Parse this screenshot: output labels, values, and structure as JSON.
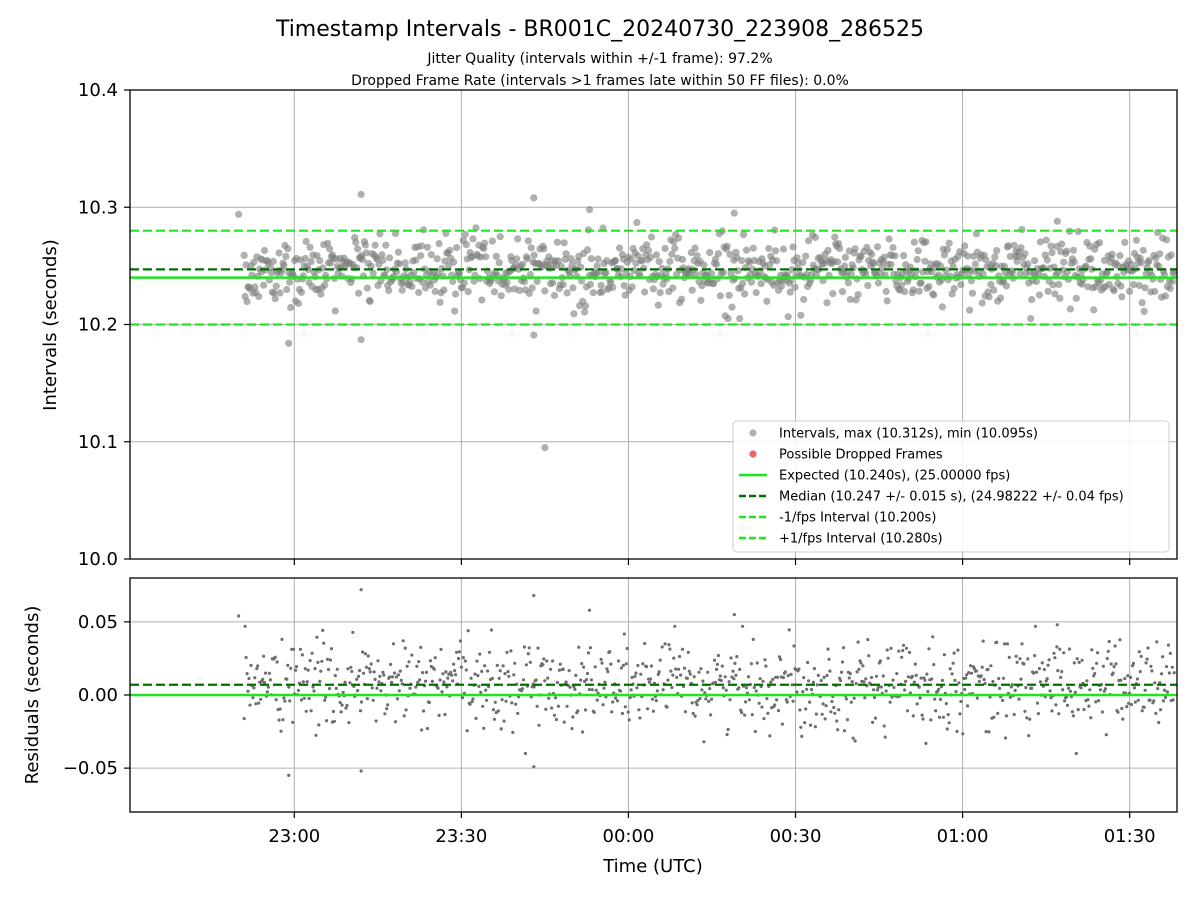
{
  "title": "Timestamp Intervals - BR001C_20240730_223908_286525",
  "subtitle_1": "Jitter Quality (intervals within +/-1 frame): 97.2%",
  "subtitle_2": "Dropped Frame Rate (intervals >1 frames late within 50 FF files): 0.0%",
  "colors": {
    "points": "#808080",
    "dropped": "#f05050",
    "expected": "#1ee61e",
    "median": "#007000",
    "fps_interval": "#1ee61e",
    "grid": "#b0b0b0"
  },
  "chart_data": [
    {
      "type": "scatter",
      "ylabel": "Intervals (seconds)",
      "ylim": [
        10.0,
        10.4
      ],
      "xlim_minutes": [
        -89.5,
        98.5
      ],
      "y_ticks": [
        "10.0",
        "10.1",
        "10.2",
        "10.3",
        "10.4"
      ],
      "grid": true,
      "legend_position": "lower-right",
      "series": [
        {
          "name": "Intervals, max (10.312s), min (10.095s)",
          "kind": "points",
          "max": 10.312,
          "min": 10.095,
          "center": 10.247,
          "spread": 0.015
        },
        {
          "name": "Possible Dropped Frames",
          "kind": "points",
          "values": []
        },
        {
          "name": "Expected (10.240s), (25.00000 fps)",
          "kind": "hline",
          "y": 10.24
        },
        {
          "name": "Median (10.247 +/- 0.015 s), (24.98222 +/- 0.04 fps)",
          "kind": "hline",
          "y": 10.247
        },
        {
          "name": "-1/fps Interval (10.200s)",
          "kind": "hline",
          "y": 10.2
        },
        {
          "name": "+1/fps Interval (10.280s)",
          "kind": "hline",
          "y": 10.28
        }
      ],
      "outliers": [
        {
          "time": "22:59",
          "y": 10.184
        },
        {
          "time": "23:12",
          "y": 10.187
        },
        {
          "time": "23:12",
          "y": 10.311
        },
        {
          "time": "23:43",
          "y": 10.191
        },
        {
          "time": "23:43",
          "y": 10.308
        },
        {
          "time": "23:45",
          "y": 10.095
        },
        {
          "time": "22:50",
          "y": 10.294
        },
        {
          "time": "23:53",
          "y": 10.298
        },
        {
          "time": "00:19",
          "y": 10.295
        },
        {
          "time": "01:17",
          "y": 10.288
        }
      ]
    },
    {
      "type": "scatter",
      "ylabel": "Residuals (seconds)",
      "xlabel": "Time (UTC)",
      "ylim": [
        -0.08,
        0.08
      ],
      "y_ticks": [
        "−0.05",
        "0.00",
        "0.05"
      ],
      "x_ticks": [
        "23:00",
        "23:30",
        "00:00",
        "00:30",
        "01:00",
        "01:30"
      ],
      "x_tick_minutes": [
        -60,
        -30,
        0,
        30,
        60,
        90
      ],
      "grid": true,
      "series": [
        {
          "name": "Residuals",
          "kind": "points",
          "center": 0.007,
          "spread": 0.015
        },
        {
          "name": "Expected",
          "kind": "hline",
          "y": 0.0
        },
        {
          "name": "Median",
          "kind": "hline",
          "y": 0.007
        }
      ],
      "outliers": [
        {
          "time": "23:12",
          "y": 0.072
        },
        {
          "time": "23:12",
          "y": -0.052
        },
        {
          "time": "22:59",
          "y": -0.055
        },
        {
          "time": "23:43",
          "y": 0.068
        },
        {
          "time": "23:43",
          "y": -0.049
        },
        {
          "time": "22:50",
          "y": 0.054
        },
        {
          "time": "23:53",
          "y": 0.058
        },
        {
          "time": "00:19",
          "y": 0.055
        },
        {
          "time": "01:17",
          "y": 0.048
        }
      ]
    }
  ],
  "point_count": 960,
  "time_range": [
    "22:51",
    "01:38"
  ]
}
